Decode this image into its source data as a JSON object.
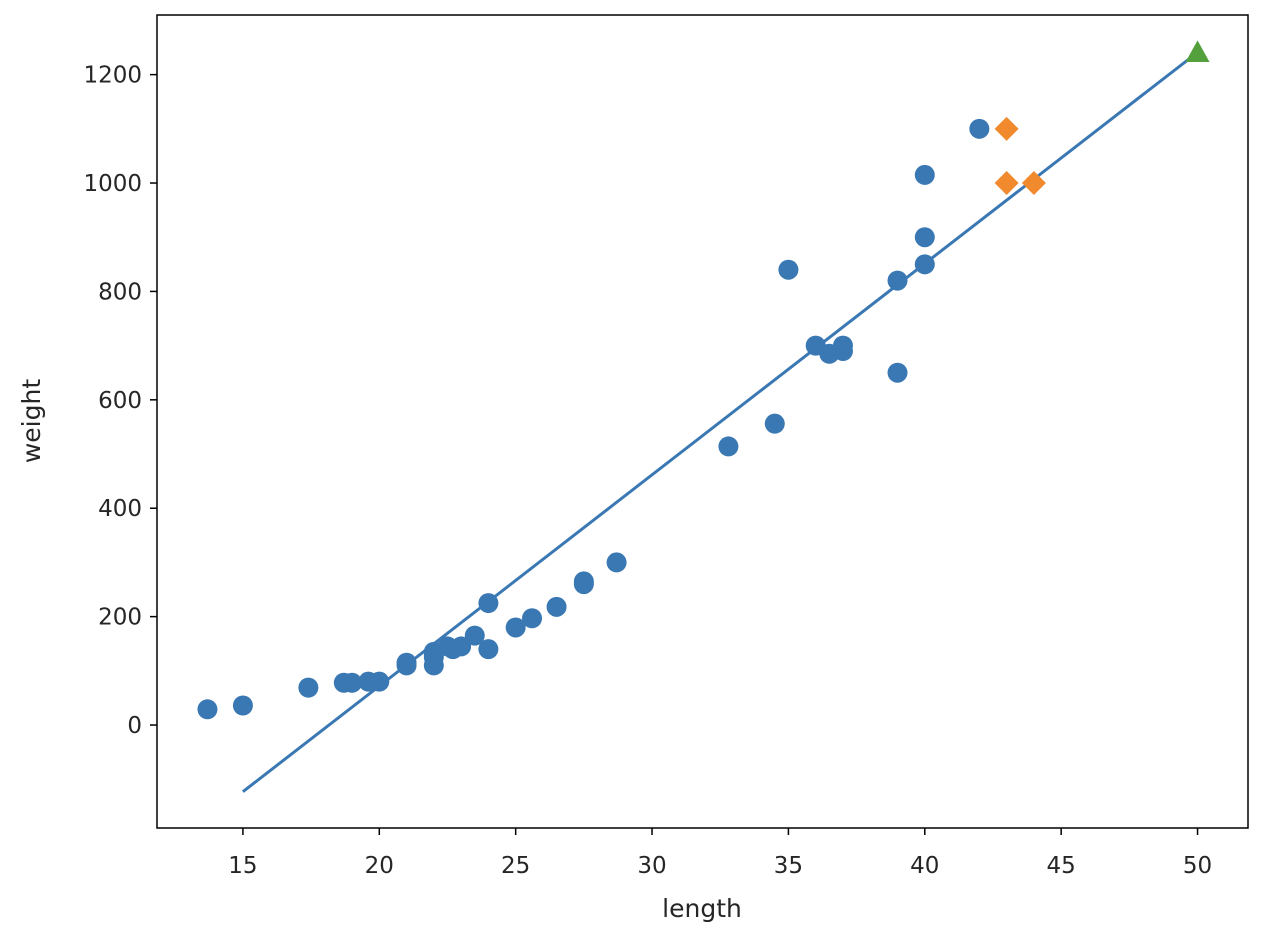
{
  "chart_data": {
    "type": "scatter",
    "title": "",
    "xlabel": "length",
    "ylabel": "weight",
    "xlim": [
      11.85,
      51.85
    ],
    "ylim": [
      -190,
      1310
    ],
    "grid": false,
    "x_ticks": [
      15,
      20,
      25,
      30,
      35,
      40,
      45,
      50
    ],
    "y_ticks": [
      0,
      200,
      400,
      600,
      800,
      1000,
      1200
    ],
    "x_tick_labels": [
      "15",
      "20",
      "25",
      "30",
      "35",
      "40",
      "45",
      "50"
    ],
    "y_tick_labels": [
      "0",
      "200",
      "400",
      "600",
      "800",
      "1000",
      "1200"
    ],
    "series": [
      {
        "kind": "scatter",
        "marker": "circle",
        "color": "#3a78b4",
        "points": [
          [
            13.7,
            29
          ],
          [
            15.0,
            36
          ],
          [
            17.4,
            69
          ],
          [
            18.7,
            78
          ],
          [
            19.0,
            78
          ],
          [
            19.6,
            80
          ],
          [
            20.0,
            80
          ],
          [
            21.0,
            110
          ],
          [
            21.0,
            115
          ],
          [
            22.0,
            110
          ],
          [
            22.0,
            125
          ],
          [
            22.0,
            130
          ],
          [
            22.0,
            135
          ],
          [
            22.5,
            145
          ],
          [
            22.7,
            140
          ],
          [
            23.0,
            145
          ],
          [
            23.5,
            165
          ],
          [
            24.0,
            140
          ],
          [
            24.0,
            225
          ],
          [
            25.0,
            180
          ],
          [
            25.6,
            197
          ],
          [
            26.5,
            218
          ],
          [
            27.5,
            260
          ],
          [
            27.5,
            265
          ],
          [
            28.7,
            300
          ],
          [
            32.8,
            514
          ],
          [
            34.5,
            556
          ],
          [
            35.0,
            840
          ],
          [
            36.0,
            700
          ],
          [
            36.5,
            685
          ],
          [
            37.0,
            690
          ],
          [
            37.0,
            700
          ],
          [
            39.0,
            650
          ],
          [
            39.0,
            820
          ],
          [
            40.0,
            850
          ],
          [
            40.0,
            900
          ],
          [
            40.0,
            1015
          ],
          [
            42.0,
            1100
          ]
        ]
      },
      {
        "kind": "scatter",
        "marker": "diamond",
        "color": "#f08a2d",
        "points": [
          [
            43.0,
            1000
          ],
          [
            43.0,
            1100
          ],
          [
            44.0,
            1000
          ]
        ]
      },
      {
        "kind": "line",
        "color": "#3a78b4",
        "points": [
          [
            15,
            -123
          ],
          [
            50,
            1241
          ]
        ]
      },
      {
        "kind": "scatter",
        "marker": "triangle",
        "color": "#53a03c",
        "points": [
          [
            50,
            1241
          ]
        ]
      }
    ]
  }
}
